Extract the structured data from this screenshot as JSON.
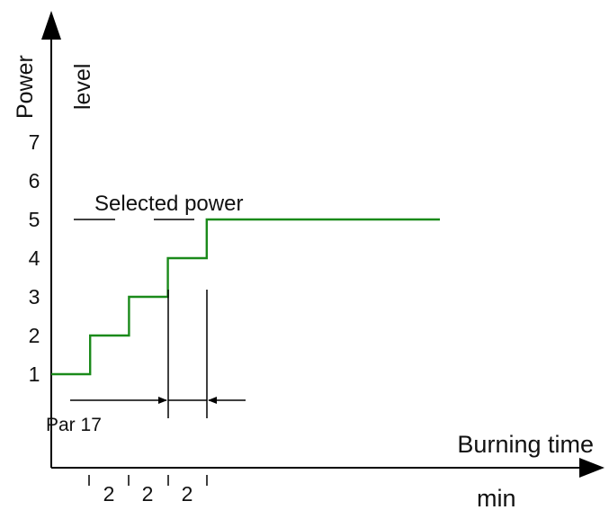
{
  "chart_data": {
    "type": "line",
    "title": "",
    "ylabel_line1": "Power",
    "ylabel_line2": "level",
    "xlabel": "Burning time",
    "x_unit": "min",
    "y_ticks": [
      "1",
      "2",
      "3",
      "4",
      "5",
      "6",
      "7"
    ],
    "ylim": [
      0,
      8
    ],
    "x_segment_labels": [
      "2",
      "2",
      "2"
    ],
    "series": [
      {
        "color": "#1a8a1a",
        "step": true,
        "x": [
          0,
          2,
          4,
          6,
          8,
          20
        ],
        "y": [
          1,
          2,
          3,
          4,
          5,
          5
        ]
      }
    ],
    "annotations": {
      "selected_power": "Selected power",
      "par_label": "Par 17"
    }
  }
}
